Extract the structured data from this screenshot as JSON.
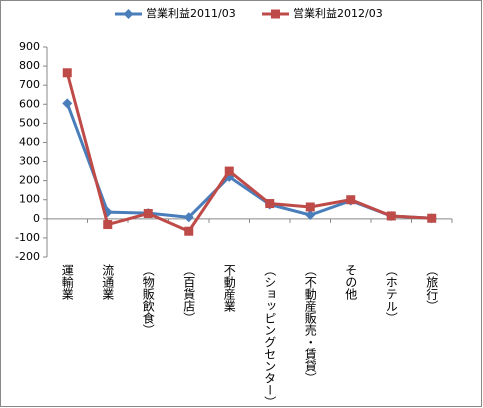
{
  "chart_data": {
    "type": "line",
    "categories": [
      "運輸業",
      "流通業",
      "（物販飲食）",
      "（百貨店）",
      "不動産業",
      "（ショッピングセンター）",
      "（不動産販売・賃貸）",
      "その他",
      "（ホテル）",
      "（旅行）"
    ],
    "series": [
      {
        "name": "営業利益2011/03",
        "color": "#4a7ebb",
        "marker": "diamond",
        "values": [
          605,
          35,
          30,
          8,
          220,
          75,
          20,
          95,
          15,
          3
        ]
      },
      {
        "name": "営業利益2012/03",
        "color": "#be4b48",
        "marker": "square",
        "values": [
          765,
          -30,
          28,
          -65,
          250,
          80,
          62,
          100,
          15,
          3
        ]
      }
    ],
    "ylim": [
      -200,
      900
    ],
    "yticks": [
      -200,
      -100,
      0,
      100,
      200,
      300,
      400,
      500,
      600,
      700,
      800,
      900
    ],
    "grid": false,
    "legend": "top"
  }
}
